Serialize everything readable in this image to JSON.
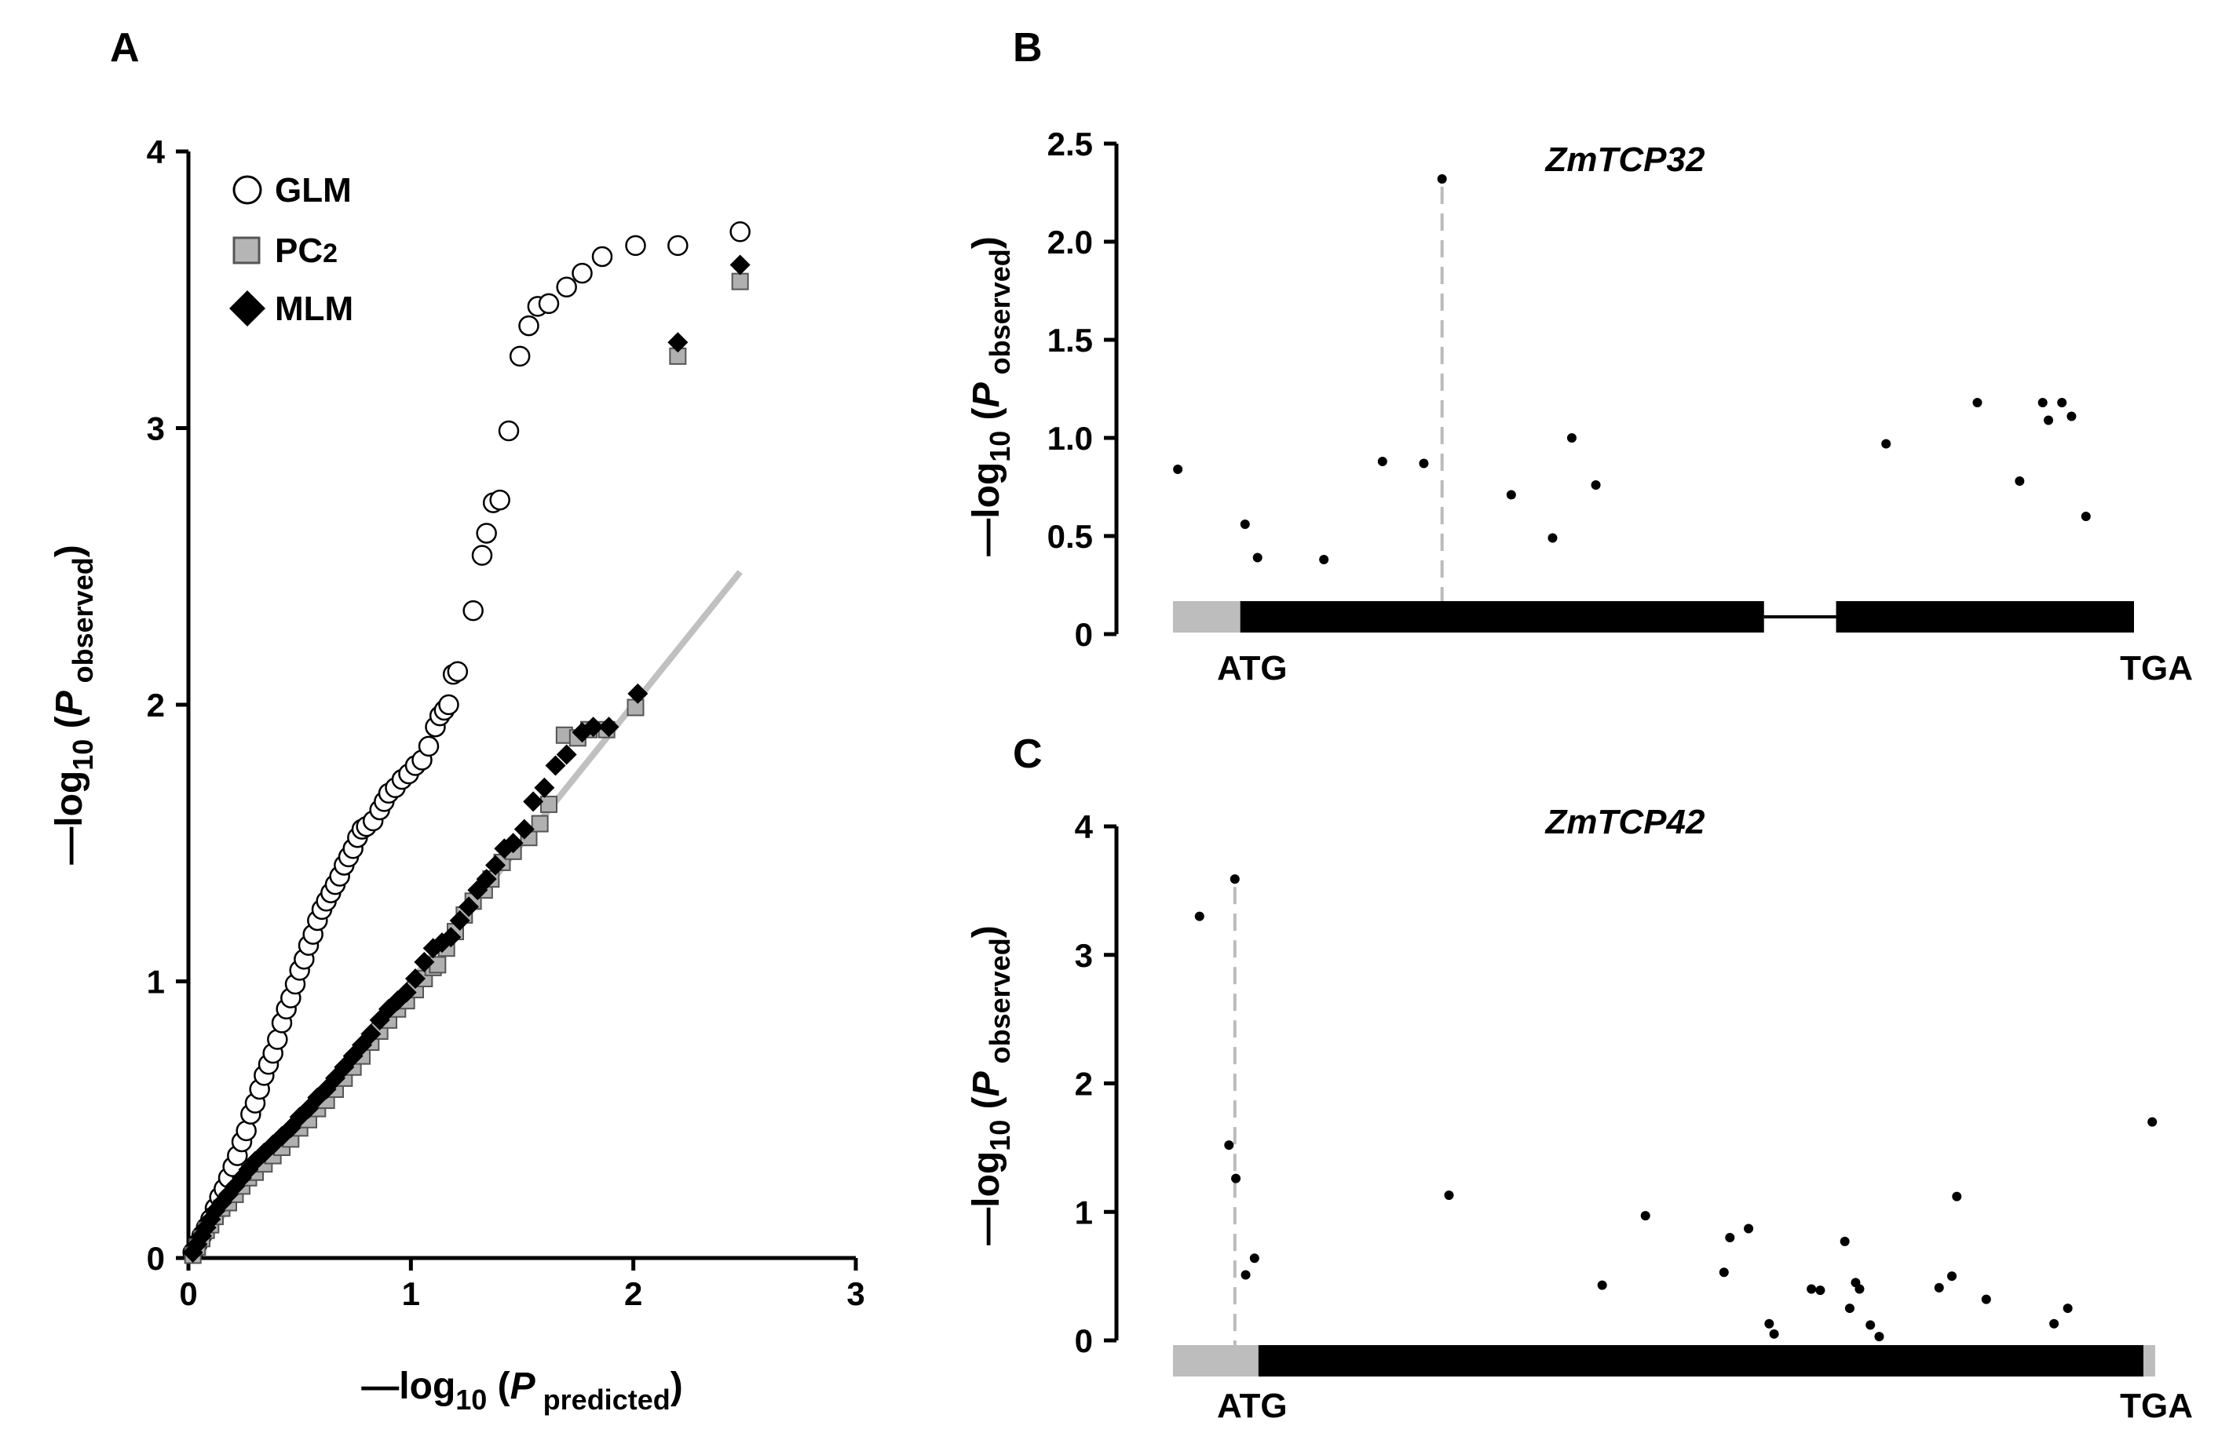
{
  "chart_data": [
    {
      "id": "A",
      "type": "scatter",
      "panel_label": "A",
      "title": "",
      "xlabel": {
        "prefix": "—log",
        "sub": "10",
        "open": " (",
        "var": "P",
        "varsub": " predicted",
        "close": ")"
      },
      "ylabel": {
        "prefix": "—log",
        "sub": "10",
        "open": " (",
        "var": "P",
        "varsub": " observed",
        "close": ")"
      },
      "xlim": [
        0,
        3
      ],
      "ylim": [
        0,
        4
      ],
      "xticks": [
        0,
        1,
        2,
        3
      ],
      "yticks": [
        0,
        1,
        2,
        3,
        4
      ],
      "reference_line": {
        "x": [
          0,
          2.48
        ],
        "y": [
          0,
          2.48
        ],
        "color": "#c0c0c0"
      },
      "legend": {
        "position": "top-left",
        "entries": [
          {
            "label": "GLM",
            "marker": "open-circle"
          },
          {
            "label": "PC",
            "label_sub": "2",
            "marker": "grey-square"
          },
          {
            "label": "MLM",
            "marker": "black-diamond"
          }
        ]
      },
      "series": [
        {
          "name": "GLM",
          "marker": "open-circle",
          "points": [
            [
              0.02,
              0.02
            ],
            [
              0.04,
              0.05
            ],
            [
              0.06,
              0.08
            ],
            [
              0.08,
              0.11
            ],
            [
              0.1,
              0.14
            ],
            [
              0.12,
              0.18
            ],
            [
              0.14,
              0.22
            ],
            [
              0.16,
              0.25
            ],
            [
              0.18,
              0.29
            ],
            [
              0.2,
              0.33
            ],
            [
              0.22,
              0.37
            ],
            [
              0.24,
              0.42
            ],
            [
              0.26,
              0.46
            ],
            [
              0.28,
              0.52
            ],
            [
              0.3,
              0.56
            ],
            [
              0.32,
              0.61
            ],
            [
              0.34,
              0.66
            ],
            [
              0.36,
              0.7
            ],
            [
              0.38,
              0.74
            ],
            [
              0.4,
              0.79
            ],
            [
              0.42,
              0.85
            ],
            [
              0.44,
              0.9
            ],
            [
              0.46,
              0.94
            ],
            [
              0.48,
              0.99
            ],
            [
              0.5,
              1.04
            ],
            [
              0.52,
              1.08
            ],
            [
              0.54,
              1.13
            ],
            [
              0.56,
              1.17
            ],
            [
              0.58,
              1.22
            ],
            [
              0.6,
              1.26
            ],
            [
              0.62,
              1.29
            ],
            [
              0.64,
              1.32
            ],
            [
              0.66,
              1.35
            ],
            [
              0.68,
              1.38
            ],
            [
              0.7,
              1.42
            ],
            [
              0.72,
              1.45
            ],
            [
              0.74,
              1.48
            ],
            [
              0.76,
              1.52
            ],
            [
              0.78,
              1.55
            ],
            [
              0.8,
              1.56
            ],
            [
              0.83,
              1.58
            ],
            [
              0.86,
              1.62
            ],
            [
              0.88,
              1.65
            ],
            [
              0.9,
              1.68
            ],
            [
              0.93,
              1.7
            ],
            [
              0.96,
              1.73
            ],
            [
              0.99,
              1.75
            ],
            [
              1.02,
              1.78
            ],
            [
              1.05,
              1.8
            ],
            [
              1.08,
              1.85
            ],
            [
              1.11,
              1.92
            ],
            [
              1.13,
              1.96
            ],
            [
              1.15,
              1.98
            ],
            [
              1.17,
              2.0
            ],
            [
              1.19,
              2.11
            ],
            [
              1.21,
              2.12
            ],
            [
              1.28,
              2.34
            ],
            [
              1.32,
              2.54
            ],
            [
              1.34,
              2.62
            ],
            [
              1.37,
              2.73
            ],
            [
              1.4,
              2.74
            ],
            [
              1.44,
              2.99
            ],
            [
              1.49,
              3.26
            ],
            [
              1.53,
              3.37
            ],
            [
              1.57,
              3.44
            ],
            [
              1.62,
              3.45
            ],
            [
              1.7,
              3.51
            ],
            [
              1.77,
              3.56
            ],
            [
              1.86,
              3.62
            ],
            [
              2.01,
              3.66
            ],
            [
              2.2,
              3.66
            ],
            [
              2.48,
              3.71
            ]
          ]
        },
        {
          "name": "PC2",
          "marker": "grey-square",
          "points": [
            [
              0.02,
              0.01
            ],
            [
              0.04,
              0.04
            ],
            [
              0.06,
              0.07
            ],
            [
              0.08,
              0.1
            ],
            [
              0.1,
              0.12
            ],
            [
              0.12,
              0.15
            ],
            [
              0.15,
              0.18
            ],
            [
              0.18,
              0.2
            ],
            [
              0.21,
              0.23
            ],
            [
              0.24,
              0.26
            ],
            [
              0.27,
              0.29
            ],
            [
              0.3,
              0.31
            ],
            [
              0.34,
              0.34
            ],
            [
              0.38,
              0.37
            ],
            [
              0.42,
              0.4
            ],
            [
              0.46,
              0.43
            ],
            [
              0.5,
              0.47
            ],
            [
              0.54,
              0.5
            ],
            [
              0.58,
              0.54
            ],
            [
              0.62,
              0.57
            ],
            [
              0.66,
              0.61
            ],
            [
              0.7,
              0.65
            ],
            [
              0.74,
              0.69
            ],
            [
              0.78,
              0.73
            ],
            [
              0.82,
              0.78
            ],
            [
              0.86,
              0.82
            ],
            [
              0.9,
              0.86
            ],
            [
              0.94,
              0.9
            ],
            [
              0.98,
              0.93
            ],
            [
              1.02,
              0.97
            ],
            [
              1.06,
              1.01
            ],
            [
              1.1,
              1.05
            ],
            [
              1.12,
              1.06
            ],
            [
              1.16,
              1.12
            ],
            [
              1.2,
              1.18
            ],
            [
              1.24,
              1.24
            ],
            [
              1.28,
              1.29
            ],
            [
              1.33,
              1.33
            ],
            [
              1.36,
              1.37
            ],
            [
              1.41,
              1.43
            ],
            [
              1.46,
              1.47
            ],
            [
              1.53,
              1.52
            ],
            [
              1.58,
              1.57
            ],
            [
              1.62,
              1.64
            ],
            [
              1.69,
              1.89
            ],
            [
              1.75,
              1.88
            ],
            [
              1.8,
              1.91
            ],
            [
              1.88,
              1.91
            ],
            [
              2.01,
              1.99
            ],
            [
              2.2,
              3.26
            ],
            [
              2.48,
              3.53
            ]
          ]
        },
        {
          "name": "MLM",
          "marker": "black-diamond",
          "points": [
            [
              0.02,
              0.02
            ],
            [
              0.04,
              0.05
            ],
            [
              0.06,
              0.08
            ],
            [
              0.08,
              0.11
            ],
            [
              0.1,
              0.14
            ],
            [
              0.12,
              0.17
            ],
            [
              0.15,
              0.2
            ],
            [
              0.18,
              0.23
            ],
            [
              0.21,
              0.26
            ],
            [
              0.24,
              0.29
            ],
            [
              0.27,
              0.32
            ],
            [
              0.3,
              0.35
            ],
            [
              0.34,
              0.38
            ],
            [
              0.38,
              0.41
            ],
            [
              0.42,
              0.44
            ],
            [
              0.46,
              0.47
            ],
            [
              0.5,
              0.51
            ],
            [
              0.54,
              0.54
            ],
            [
              0.58,
              0.58
            ],
            [
              0.62,
              0.61
            ],
            [
              0.66,
              0.65
            ],
            [
              0.7,
              0.69
            ],
            [
              0.74,
              0.73
            ],
            [
              0.78,
              0.77
            ],
            [
              0.82,
              0.81
            ],
            [
              0.86,
              0.86
            ],
            [
              0.9,
              0.9
            ],
            [
              0.94,
              0.93
            ],
            [
              0.98,
              0.96
            ],
            [
              1.02,
              1.01
            ],
            [
              1.06,
              1.07
            ],
            [
              1.1,
              1.12
            ],
            [
              1.14,
              1.14
            ],
            [
              1.18,
              1.16
            ],
            [
              1.22,
              1.22
            ],
            [
              1.26,
              1.27
            ],
            [
              1.3,
              1.33
            ],
            [
              1.34,
              1.37
            ],
            [
              1.38,
              1.42
            ],
            [
              1.42,
              1.48
            ],
            [
              1.46,
              1.5
            ],
            [
              1.51,
              1.55
            ],
            [
              1.55,
              1.65
            ],
            [
              1.6,
              1.7
            ],
            [
              1.65,
              1.78
            ],
            [
              1.7,
              1.82
            ],
            [
              1.77,
              1.9
            ],
            [
              1.82,
              1.92
            ],
            [
              1.89,
              1.92
            ],
            [
              2.02,
              2.04
            ],
            [
              2.2,
              3.31
            ],
            [
              2.48,
              3.59
            ]
          ]
        }
      ]
    },
    {
      "id": "B",
      "type": "scatter",
      "panel_label": "B",
      "title": "ZmTCP32",
      "ylabel": {
        "prefix": "—log",
        "sub": "10",
        "open": " (",
        "var": "P",
        "varsub": " observed",
        "close": ")"
      },
      "ylim": [
        0,
        2.5
      ],
      "yticks": [
        "0",
        "0.5",
        "1.0",
        "1.5",
        "2.0",
        "2.5"
      ],
      "xlim": [
        0,
        1
      ],
      "gene_model": {
        "start_codon": "ATG",
        "stop_codon": "TGA",
        "segments": [
          {
            "kind": "utr",
            "start": 0.0,
            "end": 0.07
          },
          {
            "kind": "exon",
            "start": 0.07,
            "end": 0.615
          },
          {
            "kind": "intron",
            "start": 0.615,
            "end": 0.69
          },
          {
            "kind": "exon",
            "start": 0.69,
            "end": 1.0
          }
        ]
      },
      "lead_snp": {
        "x": 0.28,
        "y": 2.32
      },
      "points": [
        [
          0.005,
          0.84
        ],
        [
          0.075,
          0.56
        ],
        [
          0.088,
          0.39
        ],
        [
          0.157,
          0.38
        ],
        [
          0.218,
          0.88
        ],
        [
          0.261,
          0.87
        ],
        [
          0.28,
          2.32
        ],
        [
          0.352,
          0.71
        ],
        [
          0.395,
          0.49
        ],
        [
          0.415,
          1.0
        ],
        [
          0.44,
          0.76
        ],
        [
          0.742,
          0.97
        ],
        [
          0.837,
          1.18
        ],
        [
          0.881,
          0.78
        ],
        [
          0.905,
          1.18
        ],
        [
          0.911,
          1.09
        ],
        [
          0.925,
          1.18
        ],
        [
          0.935,
          1.11
        ],
        [
          0.95,
          0.6
        ]
      ]
    },
    {
      "id": "C",
      "type": "scatter",
      "panel_label": "C",
      "title": "ZmTCP42",
      "ylabel": {
        "prefix": "—log",
        "sub": "10",
        "open": " (",
        "var": "P",
        "varsub": " observed",
        "close": ")"
      },
      "ylim": [
        0,
        4
      ],
      "yticks": [
        "0",
        "1",
        "2",
        "3",
        "4"
      ],
      "xlim": [
        0,
        1
      ],
      "gene_model": {
        "start_codon": "ATG",
        "stop_codon": "TGA",
        "segments": [
          {
            "kind": "utr",
            "start": 0.0,
            "end": 0.087
          },
          {
            "kind": "exon",
            "start": 0.087,
            "end": 0.988
          },
          {
            "kind": "utr",
            "start": 0.988,
            "end": 1.0
          }
        ]
      },
      "lead_snp": {
        "x": 0.063,
        "y": 3.59
      },
      "points": [
        [
          0.027,
          3.3
        ],
        [
          0.057,
          1.52
        ],
        [
          0.063,
          3.59
        ],
        [
          0.064,
          1.26
        ],
        [
          0.074,
          0.51
        ],
        [
          0.083,
          0.64
        ],
        [
          0.281,
          1.13
        ],
        [
          0.437,
          0.43
        ],
        [
          0.481,
          0.97
        ],
        [
          0.561,
          0.53
        ],
        [
          0.567,
          0.8
        ],
        [
          0.586,
          0.87
        ],
        [
          0.607,
          0.13
        ],
        [
          0.612,
          0.05
        ],
        [
          0.65,
          0.4
        ],
        [
          0.659,
          0.39
        ],
        [
          0.684,
          0.77
        ],
        [
          0.689,
          0.25
        ],
        [
          0.695,
          0.45
        ],
        [
          0.699,
          0.4
        ],
        [
          0.71,
          0.12
        ],
        [
          0.719,
          0.03
        ],
        [
          0.78,
          0.41
        ],
        [
          0.793,
          0.5
        ],
        [
          0.798,
          1.12
        ],
        [
          0.828,
          0.32
        ],
        [
          0.897,
          0.13
        ],
        [
          0.911,
          0.25
        ],
        [
          0.997,
          1.7
        ]
      ]
    }
  ]
}
